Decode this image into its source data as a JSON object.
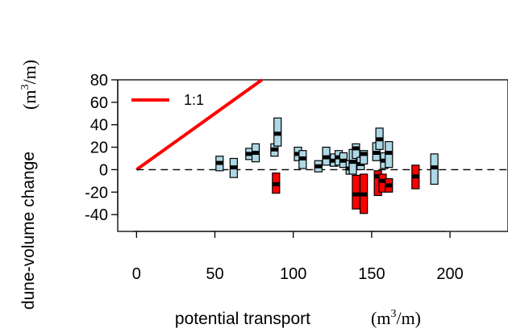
{
  "chart_data": {
    "type": "scatter",
    "title": "",
    "xlabel": "potential transport",
    "xlabel_unit": {
      "pre": "(m",
      "sup": "3",
      "post": "/m)"
    },
    "ylabel": "dune-volume change",
    "ylabel_unit": {
      "pre": "(m",
      "sup": "3",
      "post": "/m)"
    },
    "xlim": [
      -12,
      237
    ],
    "ylim": [
      -55,
      80
    ],
    "xticks": [
      0,
      50,
      100,
      150,
      200
    ],
    "yticks": [
      -40,
      -20,
      0,
      20,
      40,
      60,
      80
    ],
    "grid": false,
    "legend": {
      "position": "top-left",
      "entries": [
        {
          "label": "1:1",
          "color": "#ff0000"
        }
      ]
    },
    "reference_lines": [
      {
        "name": "1:1",
        "x": [
          0,
          80
        ],
        "y": [
          0,
          80
        ],
        "color": "#ff0000",
        "style": "solid"
      },
      {
        "name": "zero",
        "y": 0,
        "color": "#000000",
        "style": "dashed"
      }
    ],
    "series": [
      {
        "color": "#add8e6",
        "points": [
          {
            "x": 53,
            "y": 6,
            "low": -1,
            "high": 12
          },
          {
            "x": 62,
            "y": 2,
            "low": -7,
            "high": 10
          },
          {
            "x": 72,
            "y": 14,
            "low": 9,
            "high": 19
          },
          {
            "x": 76,
            "y": 15,
            "low": 7,
            "high": 23
          },
          {
            "x": 88,
            "y": 18,
            "low": 12,
            "high": 23
          },
          {
            "x": 90,
            "y": 32,
            "low": 21,
            "high": 46
          },
          {
            "x": 103,
            "y": 14,
            "low": 8,
            "high": 20
          },
          {
            "x": 106,
            "y": 10,
            "low": 1,
            "high": 17
          },
          {
            "x": 116,
            "y": 3,
            "low": -2,
            "high": 8
          },
          {
            "x": 121,
            "y": 11,
            "low": 4,
            "high": 20
          },
          {
            "x": 126,
            "y": 8,
            "low": 3,
            "high": 14
          },
          {
            "x": 129,
            "y": 11,
            "low": 4,
            "high": 17
          },
          {
            "x": 132,
            "y": 8,
            "low": 2,
            "high": 15
          },
          {
            "x": 136,
            "y": 1,
            "low": -4,
            "high": 8
          },
          {
            "x": 138,
            "y": 7,
            "low": -4,
            "high": 18
          },
          {
            "x": 140,
            "y": 19,
            "low": 10,
            "high": 23
          },
          {
            "x": 143,
            "y": 5,
            "low": 0,
            "high": 11
          },
          {
            "x": 145,
            "y": 14,
            "low": 5,
            "high": 17
          },
          {
            "x": 153,
            "y": 15,
            "low": 8,
            "high": 24
          },
          {
            "x": 155,
            "y": 27,
            "low": 18,
            "high": 37
          },
          {
            "x": 158,
            "y": 8,
            "low": 1,
            "high": 15
          },
          {
            "x": 161,
            "y": 15,
            "low": 2,
            "high": 25
          },
          {
            "x": 190,
            "y": 2,
            "low": -13,
            "high": 14
          }
        ]
      },
      {
        "color": "#ff0000",
        "points": [
          {
            "x": 89,
            "y": -13,
            "low": -21,
            "high": -3
          },
          {
            "x": 140,
            "y": -22,
            "low": -35,
            "high": -5
          },
          {
            "x": 145,
            "y": -22,
            "low": -39,
            "high": -4
          },
          {
            "x": 154,
            "y": -6,
            "low": -23,
            "high": -1
          },
          {
            "x": 157,
            "y": -10,
            "low": -20,
            "high": -4
          },
          {
            "x": 161,
            "y": -14,
            "low": -20,
            "high": -8
          },
          {
            "x": 178,
            "y": -6,
            "low": -17,
            "high": 4
          }
        ]
      }
    ]
  }
}
